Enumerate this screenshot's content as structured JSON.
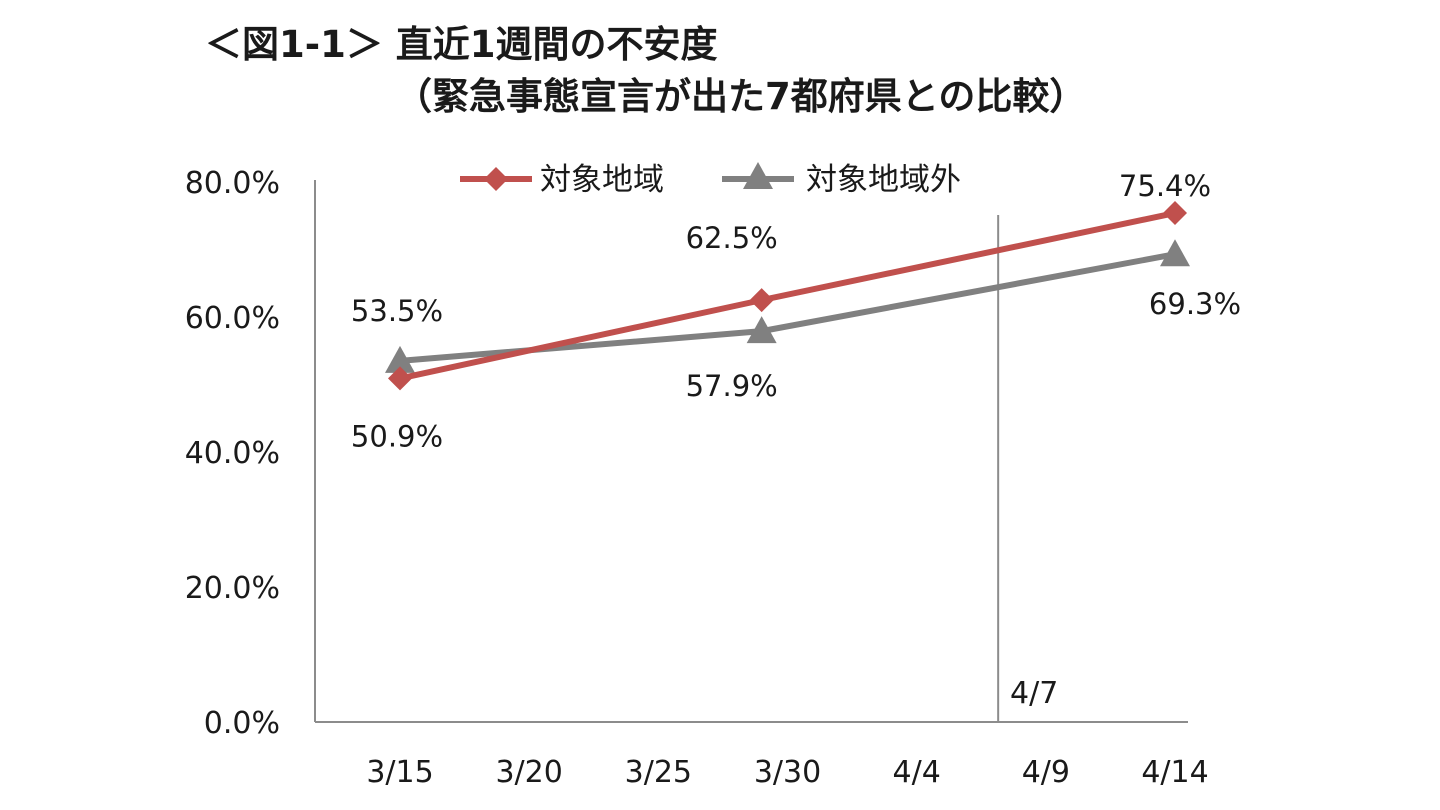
{
  "chart_data": {
    "type": "line",
    "title": "＜図1-1＞ 直近1週間の不安度",
    "subtitle": "（緊急事態宣言が出た7都府県との比較）",
    "x_tick_labels": [
      "3/15",
      "3/20",
      "3/25",
      "3/30",
      "4/4",
      "4/9",
      "4/14"
    ],
    "y_tick_labels": [
      "0.0%",
      "20.0%",
      "40.0%",
      "60.0%",
      "80.0%"
    ],
    "ylim": [
      0,
      80
    ],
    "x_axis_dates": [
      "3/15",
      "4/14"
    ],
    "series": [
      {
        "name": "対象地域",
        "color": "#c0504d",
        "marker": "diamond",
        "x": [
          "3/15",
          "3/29",
          "4/14"
        ],
        "values": [
          50.9,
          62.5,
          75.4
        ],
        "labels": [
          "50.9%",
          "62.5%",
          "75.4%"
        ]
      },
      {
        "name": "対象地域外",
        "color": "#808080",
        "marker": "triangle",
        "x": [
          "3/15",
          "3/29",
          "4/14"
        ],
        "values": [
          53.5,
          57.9,
          69.3
        ],
        "labels": [
          "53.5%",
          "57.9%",
          "69.3%"
        ]
      }
    ],
    "reference_line": {
      "x": "4/7",
      "label": "4/7"
    },
    "legend": "top-center",
    "grid": false
  }
}
